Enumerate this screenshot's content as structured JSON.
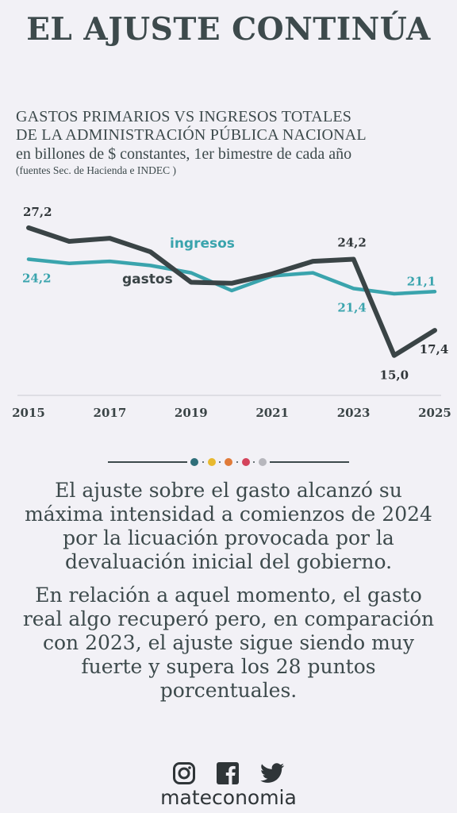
{
  "headline": "EL AJUSTE CONTINÚA",
  "subtitle": {
    "line1": "GASTOS PRIMARIOS VS INGRESOS TOTALES",
    "line2": "DE LA ADMINISTRACIÓN PÚBLICA NACIONAL",
    "line3": "en billones de $ constantes, 1er bimestre de cada año",
    "source": "(fuentes Sec. de Hacienda e INDEC )"
  },
  "chart_data": {
    "type": "line",
    "x": [
      2015,
      2016,
      2017,
      2018,
      2019,
      2020,
      2021,
      2022,
      2023,
      2024,
      2025
    ],
    "x_tick_labels": [
      "2015",
      "2017",
      "2019",
      "2021",
      "2023",
      "2025"
    ],
    "series": [
      {
        "name": "ingresos",
        "color": "#3aa4ad",
        "values": [
          24.2,
          23.8,
          24.0,
          23.6,
          22.9,
          21.2,
          22.6,
          22.9,
          21.4,
          20.9,
          21.1
        ]
      },
      {
        "name": "gastos",
        "color": "#3a4446",
        "values": [
          27.2,
          25.9,
          26.2,
          24.9,
          22.0,
          21.9,
          22.8,
          24.0,
          24.2,
          15.0,
          17.4
        ]
      }
    ],
    "data_labels": [
      {
        "series": "gastos",
        "x": 2015,
        "text": "27,2"
      },
      {
        "series": "ingresos",
        "x": 2015,
        "text": "24,2"
      },
      {
        "series": "gastos",
        "x": 2023,
        "text": "24,2"
      },
      {
        "series": "ingresos",
        "x": 2023,
        "text": "21,4"
      },
      {
        "series": "gastos",
        "x": 2024,
        "text": "15,0"
      },
      {
        "series": "ingresos",
        "x": 2025,
        "text": "21,1"
      },
      {
        "series": "gastos",
        "x": 2025,
        "text": "17,4"
      }
    ],
    "ylim": [
      8,
      30
    ],
    "grid": false
  },
  "divider_colors": [
    "#2f6f7a",
    "#e8b92f",
    "#e07b39",
    "#d4445c",
    "#b7b7bd"
  ],
  "paragraphs": {
    "p1": "El ajuste sobre el gasto alcanzó su máxima intensidad a comienzos de 2024 por la licuación provocada por la devaluación inicial del gobierno.",
    "p2": "En relación a aquel momento, el gasto real algo recuperó pero, en comparación con 2023, el ajuste sigue siendo muy fuerte y supera los 28 puntos porcentuales."
  },
  "brand": "mateconomia",
  "social_icons": [
    "instagram-icon",
    "facebook-icon",
    "twitter-icon"
  ]
}
